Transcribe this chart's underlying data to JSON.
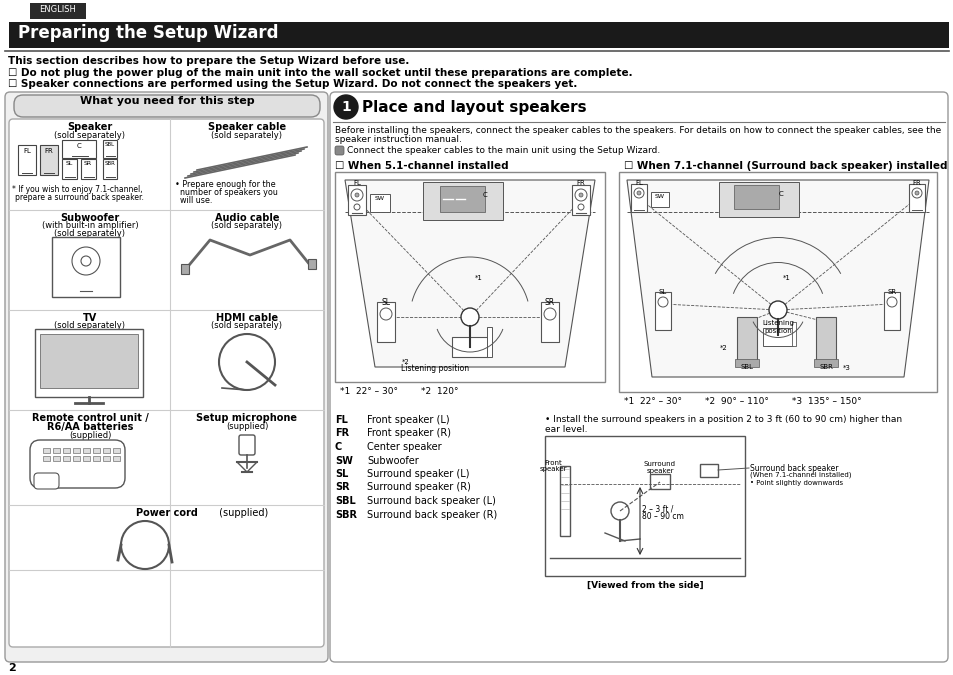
{
  "page_bg": "#ffffff",
  "english_tab_bg": "#2a2a2a",
  "english_tab_text": "ENGLISH",
  "title_bar_bg": "#1a1a1a",
  "title_text": "Preparing the Setup Wizard",
  "title_text_color": "#ffffff",
  "line1": "This section describes how to prepare the Setup Wizard before use.",
  "line2": "☐ Do not plug the power plug of the main unit into the wall socket until these preparations are complete.",
  "line3": "☐ Speaker connections are performed using the Setup Wizard. Do not connect the speakers yet.",
  "what_you_need_title": "What you need for this step",
  "step1_label": "Place and layout speakers",
  "body_text_1": "Before installing the speakers, connect the speaker cables to the speakers. For details on how to connect the speaker cables, see the",
  "body_text_2": "speaker instruction manual.",
  "connect_text": "Connect the speaker cables to the main unit using the Setup Wizard.",
  "ch51_label": "☐ When 5.1-channel installed",
  "ch71_label": "☐ When 7.1-channel (Surround back speaker) installed",
  "footnote_51": "*1  22° – 30°        *2  120°",
  "footnote_71": "*1  22° – 30°        *2  90° – 110°        *3  135° – 150°",
  "legend_items": [
    [
      "FL",
      "Front speaker (L)"
    ],
    [
      "FR",
      "Front speaker (R)"
    ],
    [
      "C",
      "Center speaker"
    ],
    [
      "SW",
      "Subwoofer"
    ],
    [
      "SL",
      "Surround speaker (L)"
    ],
    [
      "SR",
      "Surround speaker (R)"
    ],
    [
      "SBL",
      "Surround back speaker (L)"
    ],
    [
      "SBR",
      "Surround back speaker (R)"
    ]
  ],
  "side_note_1": "• Install the surround speakers in a position 2 to 3 ft (60 to 90 cm) higher than",
  "side_note_2": "ear level.",
  "side_view_label": "[Viewed from the side]",
  "page_number": "2"
}
